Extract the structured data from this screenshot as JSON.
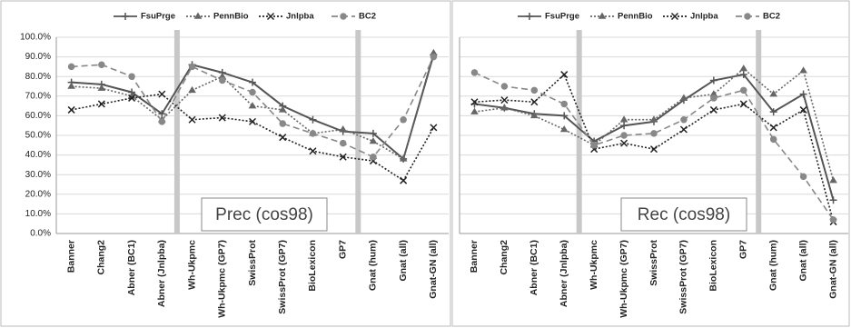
{
  "chart_data": [
    {
      "type": "line",
      "annotation": "Prec (cos98)",
      "categories": [
        "Banner",
        "Chang2",
        "Abner (BC1)",
        "Abner (Jnlpba)",
        "Wh-Ukpmc",
        "Wh-Ukpmc (GP7)",
        "SwissProt",
        "SwissProt (GP7)",
        "BioLexicon",
        "GP7",
        "Gnat (hum)",
        "Gnat (all)",
        "Gnat-GN (all)"
      ],
      "ylim": [
        0,
        100
      ],
      "yticks": [
        {
          "value": 0,
          "label": "0.0%"
        },
        {
          "value": 10,
          "label": "10.0%"
        },
        {
          "value": 20,
          "label": "20.0%"
        },
        {
          "value": 30,
          "label": "30.0%"
        },
        {
          "value": 40,
          "label": "40.0%"
        },
        {
          "value": 50,
          "label": "50.0%"
        },
        {
          "value": 60,
          "label": "60.0%"
        },
        {
          "value": 70,
          "label": "70.0%"
        },
        {
          "value": 80,
          "label": "80.0%"
        },
        {
          "value": 90,
          "label": "90.0%"
        },
        {
          "value": 100,
          "label": "100.0%"
        }
      ],
      "grid": true,
      "series": [
        {
          "name": "FsuPrge",
          "color": "#555555",
          "linestyle": "solid",
          "marker": "plus",
          "values": [
            77,
            76,
            72,
            61,
            86,
            82,
            77,
            65,
            58,
            52,
            51,
            38,
            91
          ]
        },
        {
          "name": "PennBio",
          "color": "#666666",
          "linestyle": "dotted",
          "marker": "triangle",
          "values": [
            75,
            74,
            70,
            58,
            73,
            80,
            65,
            63,
            51,
            53,
            47,
            38,
            92
          ]
        },
        {
          "name": "Jnlpba",
          "color": "#222222",
          "linestyle": "dotted",
          "marker": "x",
          "values": [
            63,
            66,
            69,
            71,
            58,
            59,
            57,
            49,
            42,
            39,
            37,
            27,
            54
          ]
        },
        {
          "name": "BC2",
          "color": "#888888",
          "linestyle": "dashed",
          "marker": "circle",
          "values": [
            85,
            86,
            80,
            57,
            85,
            78,
            72,
            56,
            51,
            46,
            39,
            58,
            90
          ]
        }
      ]
    },
    {
      "type": "line",
      "annotation": "Rec (cos98)",
      "categories": [
        "Banner",
        "Chang2",
        "Abner (BC1)",
        "Abner (Jnlpba)",
        "Wh-Ukpmc",
        "Wh-Ukpmc (GP7)",
        "SwissProt",
        "SwissProt (GP7)",
        "BioLexicon",
        "GP7",
        "Gnat (hum)",
        "Gnat (all)",
        "Gnat-GN (all)"
      ],
      "ylim": [
        0,
        100
      ],
      "yticks": [
        0,
        10,
        20,
        30,
        40,
        50,
        60,
        70,
        80,
        90,
        100
      ],
      "grid": true,
      "series": [
        {
          "name": "FsuPrge",
          "color": "#555555",
          "linestyle": "solid",
          "marker": "plus",
          "values": [
            66,
            64,
            61,
            60,
            47,
            55,
            57,
            68,
            78,
            81,
            62,
            71,
            17
          ]
        },
        {
          "name": "PennBio",
          "color": "#666666",
          "linestyle": "dotted",
          "marker": "triangle",
          "values": [
            62,
            64,
            60,
            53,
            45,
            58,
            58,
            69,
            71,
            84,
            71,
            83,
            27
          ]
        },
        {
          "name": "Jnlpba",
          "color": "#222222",
          "linestyle": "dotted",
          "marker": "x",
          "values": [
            67,
            68,
            67,
            81,
            43,
            46,
            43,
            53,
            63,
            66,
            54,
            63,
            6
          ]
        },
        {
          "name": "BC2",
          "color": "#888888",
          "linestyle": "dashed",
          "marker": "circle",
          "values": [
            82,
            75,
            73,
            66,
            45,
            50,
            51,
            58,
            69,
            73,
            48,
            29,
            7
          ]
        }
      ]
    }
  ]
}
